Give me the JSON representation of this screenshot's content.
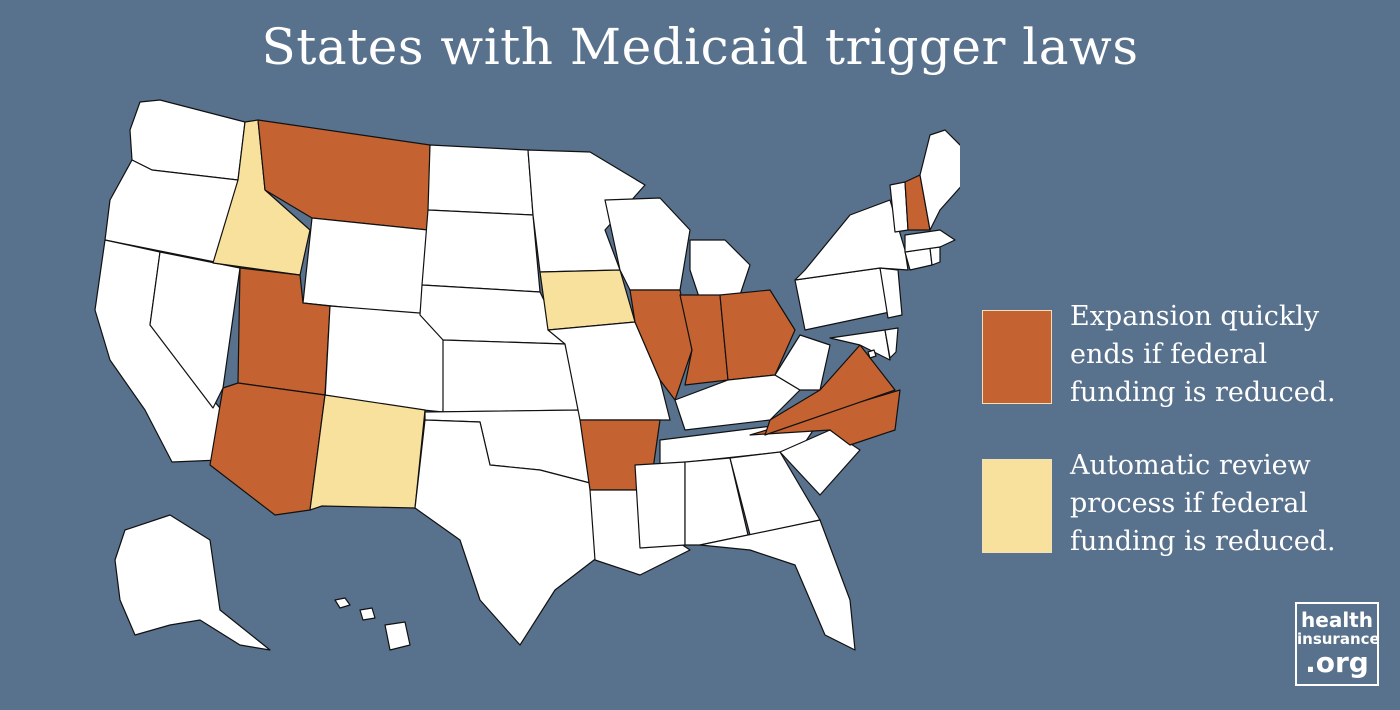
{
  "title": "States with Medicaid trigger laws",
  "colors": {
    "background": "#58718c",
    "other": "#ffffff",
    "expansion_ends": "#c46331",
    "automatic_review": "#f8e19d",
    "border": "#111111"
  },
  "legend": [
    {
      "category": "expansion_ends",
      "lines": [
        "Expansion quickly",
        "ends if federal",
        "funding is reduced."
      ]
    },
    {
      "category": "automatic_review",
      "lines": [
        "Automatic review",
        "process if federal",
        "funding is reduced."
      ]
    }
  ],
  "states": [
    {
      "name": "Washington",
      "category": "other"
    },
    {
      "name": "Oregon",
      "category": "other"
    },
    {
      "name": "California",
      "category": "other"
    },
    {
      "name": "Nevada",
      "category": "other"
    },
    {
      "name": "Idaho",
      "category": "automatic_review"
    },
    {
      "name": "Montana",
      "category": "expansion_ends"
    },
    {
      "name": "Wyoming",
      "category": "other"
    },
    {
      "name": "Utah",
      "category": "expansion_ends"
    },
    {
      "name": "Arizona",
      "category": "expansion_ends"
    },
    {
      "name": "Colorado",
      "category": "other"
    },
    {
      "name": "New Mexico",
      "category": "automatic_review"
    },
    {
      "name": "North Dakota",
      "category": "other"
    },
    {
      "name": "South Dakota",
      "category": "other"
    },
    {
      "name": "Nebraska",
      "category": "other"
    },
    {
      "name": "Kansas",
      "category": "other"
    },
    {
      "name": "Oklahoma",
      "category": "other"
    },
    {
      "name": "Texas",
      "category": "other"
    },
    {
      "name": "Minnesota",
      "category": "other"
    },
    {
      "name": "Iowa",
      "category": "automatic_review"
    },
    {
      "name": "Missouri",
      "category": "other"
    },
    {
      "name": "Arkansas",
      "category": "expansion_ends"
    },
    {
      "name": "Louisiana",
      "category": "other"
    },
    {
      "name": "Wisconsin",
      "category": "other"
    },
    {
      "name": "Illinois",
      "category": "expansion_ends"
    },
    {
      "name": "Michigan",
      "category": "other"
    },
    {
      "name": "Indiana",
      "category": "expansion_ends"
    },
    {
      "name": "Ohio",
      "category": "expansion_ends"
    },
    {
      "name": "Kentucky",
      "category": "other"
    },
    {
      "name": "Tennessee",
      "category": "other"
    },
    {
      "name": "Mississippi",
      "category": "other"
    },
    {
      "name": "Alabama",
      "category": "other"
    },
    {
      "name": "Georgia",
      "category": "other"
    },
    {
      "name": "Florida",
      "category": "other"
    },
    {
      "name": "South Carolina",
      "category": "other"
    },
    {
      "name": "North Carolina",
      "category": "expansion_ends"
    },
    {
      "name": "Virginia",
      "category": "expansion_ends"
    },
    {
      "name": "West Virginia",
      "category": "other"
    },
    {
      "name": "Maryland",
      "category": "other"
    },
    {
      "name": "Delaware",
      "category": "other"
    },
    {
      "name": "Pennsylvania",
      "category": "other"
    },
    {
      "name": "New Jersey",
      "category": "other"
    },
    {
      "name": "New York",
      "category": "other"
    },
    {
      "name": "Connecticut",
      "category": "other"
    },
    {
      "name": "Rhode Island",
      "category": "other"
    },
    {
      "name": "Massachusetts",
      "category": "other"
    },
    {
      "name": "Vermont",
      "category": "other"
    },
    {
      "name": "New Hampshire",
      "category": "expansion_ends"
    },
    {
      "name": "Maine",
      "category": "other"
    },
    {
      "name": "Alaska",
      "category": "other"
    },
    {
      "name": "Hawaii",
      "category": "other"
    },
    {
      "name": "District of Columbia",
      "category": "other"
    }
  ],
  "logo": {
    "line1": "health",
    "line2": "insurance",
    "line3": ".org"
  }
}
